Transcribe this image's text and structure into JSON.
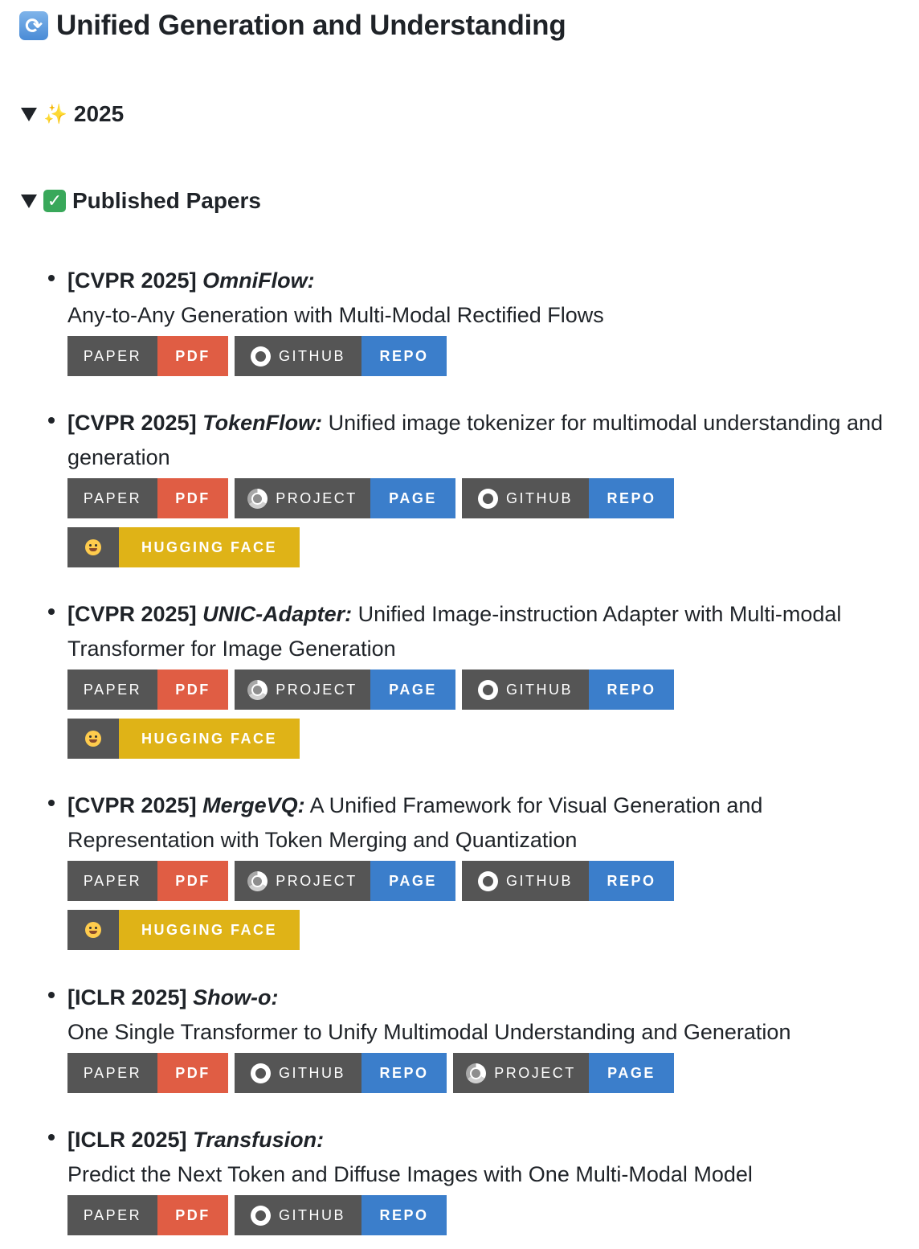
{
  "title": {
    "icon": "refresh-arrows-icon",
    "text": "Unified Generation and Understanding"
  },
  "sections": {
    "year": {
      "icon": "sparkles-icon",
      "label": "2025"
    },
    "published": {
      "icon": "check-mark-icon",
      "label": "Published Papers"
    }
  },
  "badge_labels": {
    "paper": "PAPER",
    "pdf": "PDF",
    "github": "GITHUB",
    "repo": "REPO",
    "project": "PROJECT",
    "page": "PAGE",
    "hf_value": "HUGGING FACE"
  },
  "badge_colors": {
    "label_bg": "#555555",
    "pdf": "#e05d44",
    "link": "#3b7ecb",
    "hf": "#dfb317"
  },
  "papers": [
    {
      "venue": "[CVPR 2025]",
      "name": "OmniFlow:",
      "desc": "Any-to-Any Generation with Multi-Modal Rectified Flows"
    },
    {
      "venue": "[CVPR 2025]",
      "name": "TokenFlow:",
      "desc": "Unified image tokenizer for multimodal understanding and generation"
    },
    {
      "venue": "[CVPR 2025]",
      "name": "UNIC-Adapter:",
      "desc": "Unified Image-instruction Adapter with Multi-modal Transformer for Image Generation"
    },
    {
      "venue": "[CVPR 2025]",
      "name": "MergeVQ:",
      "desc": "A Unified Framework for Visual Generation and Representation with Token Merging and Quantization"
    },
    {
      "venue": "[ICLR 2025]",
      "name": "Show-o:",
      "desc": "One Single Transformer to Unify Multimodal Understanding and Generation"
    },
    {
      "venue": "[ICLR 2025]",
      "name": "Transfusion:",
      "desc": "Predict the Next Token and Diffuse Images with One Multi-Modal Model"
    }
  ]
}
